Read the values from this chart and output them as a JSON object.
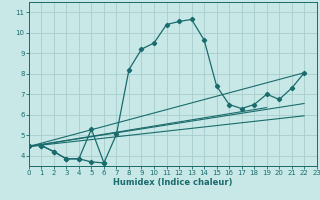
{
  "xlabel": "Humidex (Indice chaleur)",
  "bg_color": "#c8e8e8",
  "grid_color": "#a8cccc",
  "line_color": "#1a6b6b",
  "xlim": [
    0,
    23
  ],
  "ylim": [
    3.5,
    11.5
  ],
  "xticks": [
    0,
    1,
    2,
    3,
    4,
    5,
    6,
    7,
    8,
    9,
    10,
    11,
    12,
    13,
    14,
    15,
    16,
    17,
    18,
    19,
    20,
    21,
    22,
    23
  ],
  "yticks": [
    4,
    5,
    6,
    7,
    8,
    9,
    10,
    11
  ],
  "curve1_x": [
    0,
    1,
    2,
    3,
    4,
    5,
    6,
    7,
    8,
    9,
    10,
    11,
    12,
    13,
    14,
    15,
    16,
    17,
    18,
    19,
    20,
    21,
    22
  ],
  "curve1_y": [
    4.5,
    4.5,
    4.2,
    3.85,
    3.85,
    5.3,
    3.65,
    5.05,
    8.2,
    9.2,
    9.5,
    10.4,
    10.55,
    10.65,
    9.65,
    7.4,
    6.5,
    6.3,
    6.5,
    7.0,
    6.75,
    7.3,
    8.05
  ],
  "curve2_x": [
    0,
    1,
    2,
    3,
    4,
    5,
    6
  ],
  "curve2_y": [
    4.5,
    4.5,
    4.2,
    3.85,
    3.85,
    3.7,
    3.65
  ],
  "trend_lines": [
    {
      "x": [
        0,
        22
      ],
      "y": [
        4.45,
        8.05
      ]
    },
    {
      "x": [
        0,
        19
      ],
      "y": [
        4.45,
        6.35
      ]
    },
    {
      "x": [
        0,
        22
      ],
      "y": [
        4.45,
        6.55
      ]
    },
    {
      "x": [
        0,
        22
      ],
      "y": [
        4.45,
        5.95
      ]
    }
  ]
}
